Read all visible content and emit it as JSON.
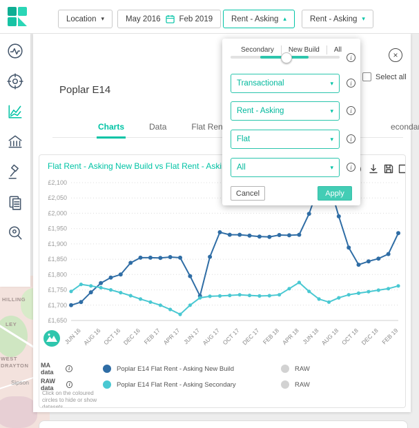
{
  "glyphs": {
    "chevron_down": "▾",
    "chevron_up": "▴",
    "close": "×",
    "info": "i"
  },
  "colors": {
    "accent": "#00c3a5",
    "new_build_blue": "#2f6da5",
    "secondary_teal": "#49c8d2",
    "raw_grey": "#d2d2d2"
  },
  "topbar": {
    "location_label": "Location",
    "date_from": "May 2016",
    "date_to": "Feb 2019",
    "metric1_label": "Rent - Asking",
    "metric2_label": "Rent - Asking"
  },
  "sidebar": {
    "icons": [
      "pulse-chart-icon",
      "discover-target-icon",
      "trend-charts-icon",
      "bank-valuation-icon",
      "auction-icon",
      "reports-documents-icon",
      "area-search-icon"
    ],
    "active_index": 2
  },
  "map": {
    "labels": [
      {
        "text": "HILLING"
      },
      {
        "text": "LEY"
      },
      {
        "text": "WEST"
      },
      {
        "text": "DRAYTON"
      },
      {
        "text": "Sipson"
      }
    ]
  },
  "main": {
    "title": "Poplar E14",
    "select_all_label": "Select all",
    "tabs": [
      {
        "label": "Charts"
      },
      {
        "label": "Data"
      },
      {
        "label": "Flat Rent - A"
      },
      {
        "label": "econdary"
      }
    ]
  },
  "popover": {
    "segments": [
      "Secondary",
      "New Build",
      "All"
    ],
    "selects": [
      {
        "value": "Transactional"
      },
      {
        "value": "Rent - Asking"
      },
      {
        "value": "Flat"
      },
      {
        "value": "All"
      }
    ],
    "cancel_label": "Cancel",
    "apply_label": "Apply"
  },
  "chart_data": {
    "type": "line",
    "title": "Flat Rent - Asking New Build vs Flat Rent - Asking Se",
    "xlabel": "",
    "ylabel": "",
    "ylim": [
      1650,
      2100
    ],
    "ytick_step": 50,
    "grid": true,
    "legend_position": "bottom",
    "x_tick_labels": [
      "JUN 16",
      "AUG 16",
      "OCT 16",
      "DEC 16",
      "FEB 17",
      "APR 17",
      "JUN 17",
      "AUG 17",
      "OCT 17",
      "DEC 17",
      "FEB 18",
      "APR 18",
      "JUN 18",
      "AUG 18",
      "OCT 18",
      "DEC 18",
      "FEB 19"
    ],
    "series": [
      {
        "name": "Poplar E14 Flat Rent - Asking New Build",
        "color": "#2f6da5",
        "values": [
          1700,
          1710,
          1742,
          1772,
          1790,
          1800,
          1838,
          1855,
          1855,
          1854,
          1857,
          1855,
          1795,
          1730,
          1858,
          1938,
          1930,
          1930,
          1927,
          1924,
          1923,
          1929,
          1928,
          1930,
          1998,
          2090,
          2100,
          1990,
          1888,
          1832,
          1843,
          1852,
          1867,
          1935
        ]
      },
      {
        "name": "Poplar E14 Flat Rent - Asking Secondary",
        "color": "#49c8d2",
        "values": [
          1745,
          1768,
          1763,
          1757,
          1750,
          1741,
          1731,
          1720,
          1710,
          1700,
          1686,
          1670,
          1700,
          1724,
          1729,
          1730,
          1732,
          1734,
          1732,
          1730,
          1731,
          1734,
          1754,
          1774,
          1745,
          1720,
          1710,
          1724,
          1734,
          1739,
          1744,
          1749,
          1754,
          1763
        ]
      }
    ]
  },
  "legend": {
    "ma_label": "MA data",
    "raw_label": "RAW data",
    "series1": "Poplar E14 Flat Rent - Asking New Build",
    "series2": "Poplar E14 Flat Rent - Asking Secondary",
    "raw_value1": "RAW",
    "raw_value2": "RAW",
    "hint": "Click on the coloured circles to hide or show datasets"
  }
}
